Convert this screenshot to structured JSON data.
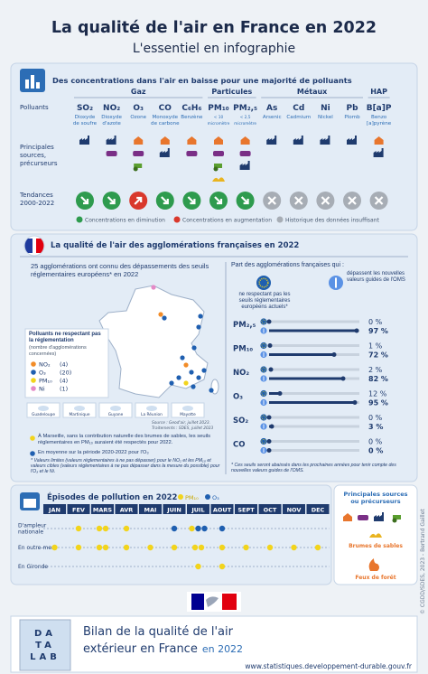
{
  "header": {
    "title": "La qualité de l'air en France en 2022",
    "subtitle": "L'essentiel en infographie"
  },
  "concentrations": {
    "title": "Des concentrations dans l'air en baisse pour une majorité de polluants",
    "row_labels": {
      "pollutants": "Polluants",
      "sources": [
        "Principales",
        "sources,",
        "précurseurs"
      ],
      "trends": [
        "Tendances",
        "2000-2022"
      ]
    },
    "groups": [
      {
        "name": "Gaz",
        "pollutants": [
          {
            "symbol": "SO₂",
            "name": [
              "Dioxyde",
              "de soufre"
            ],
            "trend": "down"
          },
          {
            "symbol": "NO₂",
            "name": [
              "Dioxyde",
              "d'azote"
            ],
            "trend": "down"
          },
          {
            "symbol": "O₃",
            "name": [
              "Ozone"
            ],
            "trend": "up"
          },
          {
            "symbol": "CO",
            "name": [
              "Monoxyde",
              "de carbone"
            ],
            "trend": "down"
          },
          {
            "symbol": "C₆H₆",
            "name": [
              "Benzène"
            ],
            "trend": "down"
          }
        ]
      },
      {
        "name": "Particules",
        "pollutants": [
          {
            "symbol": "PM₁₀",
            "name": [
              "< 10",
              "micromètre"
            ],
            "trend": "down"
          },
          {
            "symbol": "PM₂,₅",
            "name": [
              "< 2,5",
              "micromètre"
            ],
            "trend": "down"
          }
        ]
      },
      {
        "name": "Métaux",
        "pollutants": [
          {
            "symbol": "As",
            "name": [
              "Arsenic"
            ],
            "trend": "none"
          },
          {
            "symbol": "Cd",
            "name": [
              "Cadmium"
            ],
            "trend": "none"
          },
          {
            "symbol": "Ni",
            "name": [
              "Nickel"
            ],
            "trend": "none"
          },
          {
            "symbol": "Pb",
            "name": [
              "Plomb"
            ],
            "trend": "none"
          }
        ]
      },
      {
        "name": "HAP",
        "pollutants": [
          {
            "symbol": "B[a]P",
            "name": [
              "Benzo",
              "[a]pyrène"
            ],
            "trend": "none"
          }
        ]
      }
    ],
    "legend": {
      "down": {
        "label": "Concentrations en diminution",
        "color": "#2e9b4e"
      },
      "up": {
        "label": "Concentrations en augmentation",
        "color": "#d9382c"
      },
      "none": {
        "label": "Historique des données insuffisant",
        "color": "#a7adb5"
      }
    }
  },
  "agglomerations": {
    "title": "La qualité de l'air des agglomérations françaises en 2022",
    "map": {
      "headline": "25 agglomérations ont connu des dépassements des seuils réglementaires européens* en 2022",
      "legend_title": "Polluants ne respectant pas la réglementation",
      "legend_subtitle": "(nombre d'agglomérations concernées)",
      "legend": [
        {
          "name": "NO₂",
          "color": "#f28c28",
          "value": 4,
          "value_label": "(4)"
        },
        {
          "name": "O₃",
          "color": "#1f5fb0",
          "value": 20,
          "value_label": "(20)"
        },
        {
          "name": "PM₁₀",
          "color": "#f2d41c",
          "value": 4,
          "value_label": "(4)"
        },
        {
          "name": "Ni",
          "color": "#e48ac7",
          "value": 1,
          "value_label": "(1)"
        }
      ],
      "territories": [
        "Guadeloupe",
        "Martinique",
        "Guyane",
        "La Réunion",
        "Mayotte"
      ],
      "source": [
        "Source : Geod'air, juillet 2023.",
        "Traitements : SDES, juillet 2023"
      ]
    },
    "notes": [
      "À Marseille, sans la contribution naturelle des brumes de sables, les seuils réglementaires en PM₁₀ auraient été respectés pour 2022.",
      "En moyenne sur la période 2020-2022 pour l'O₃",
      "* Valeurs limites (valeurs réglementaires à ne pas dépasser) pour le NO₂ et les PM₁₀ et valeurs cibles (valeurs réglementaires à ne pas dépasser dans la mesure du possible) pour l'O₃ et le Ni."
    ],
    "shares": {
      "title": "Part des agglomérations françaises qui :",
      "categories": [
        "PM₂,₅",
        "PM₁₀",
        "NO₂",
        "O₃",
        "SO₂",
        "CO"
      ],
      "xlim": [
        0,
        100
      ],
      "series": [
        {
          "name": "ne respectant pas les seuils réglementaires européens actuels*",
          "color": "#1f3b6e",
          "values": [
            0,
            1,
            2,
            12,
            0,
            0
          ],
          "value_labels": [
            "0 %",
            "1 %",
            "2 %",
            "12 %",
            "0 %",
            "0 %"
          ]
        },
        {
          "name": "dépassent les nouvelles valeurs guides de l'OMS",
          "color": "#1f3b6e",
          "values": [
            97,
            72,
            82,
            95,
            3,
            0
          ],
          "value_labels": [
            "97 %",
            "72 %",
            "82 %",
            "95 %",
            "3 %",
            "0 %"
          ]
        }
      ],
      "note": "* Ces seuils seront abaissés dans les prochaines années pour tenir compte des nouvelles valeurs guides de l'OMS."
    }
  },
  "episodes": {
    "title": "Épisodes de pollution en 2022",
    "series": [
      {
        "name": "PM₁₀",
        "color": "#f2d41c"
      },
      {
        "name": "O₃",
        "color": "#1f5fb0"
      }
    ],
    "months": [
      "JAN",
      "FEV",
      "MARS",
      "AVR",
      "MAI",
      "JUIN",
      "JUIL",
      "AOUT",
      "SEPT",
      "OCT",
      "NOV",
      "DEC"
    ],
    "rows": [
      {
        "label": [
          "D'ampleur",
          "nationale"
        ],
        "counts": [
          [
            0,
            0
          ],
          [
            1,
            0
          ],
          [
            2,
            0
          ],
          [
            1,
            0
          ],
          [
            0,
            0
          ],
          [
            0,
            1
          ],
          [
            1,
            2
          ],
          [
            0,
            1
          ],
          [
            0,
            0
          ],
          [
            0,
            0
          ],
          [
            0,
            0
          ],
          [
            0,
            0
          ]
        ]
      },
      {
        "label": [
          "En outre-mer"
        ],
        "counts": [
          [
            1,
            0
          ],
          [
            1,
            0
          ],
          [
            2,
            0
          ],
          [
            1,
            0
          ],
          [
            1,
            0
          ],
          [
            1,
            0
          ],
          [
            2,
            0
          ],
          [
            1,
            0
          ],
          [
            1,
            0
          ],
          [
            1,
            0
          ],
          [
            1,
            0
          ],
          [
            1,
            0
          ]
        ]
      },
      {
        "label": [
          "En Gironde"
        ],
        "counts": [
          [
            0,
            0
          ],
          [
            0,
            0
          ],
          [
            0,
            0
          ],
          [
            0,
            0
          ],
          [
            0,
            0
          ],
          [
            0,
            0
          ],
          [
            1,
            0
          ],
          [
            1,
            0
          ],
          [
            0,
            0
          ],
          [
            0,
            0
          ],
          [
            0,
            0
          ],
          [
            0,
            0
          ]
        ]
      }
    ],
    "sources": {
      "title": [
        "Principales sources",
        "ou précurseurs"
      ],
      "items": [
        "Brumes de sables",
        "Feux de forêt"
      ]
    }
  },
  "credit": "© CGDD/SDES, 2023 - Bertrand Gaillet",
  "footer": {
    "title_lines": [
      "Bilan de la qualité de l'air",
      "extérieur en France"
    ],
    "year": "en 2022",
    "cover": [
      "DA",
      "TA",
      "LAB"
    ],
    "url": "www.statistiques.developpement-durable.gouv.fr"
  }
}
